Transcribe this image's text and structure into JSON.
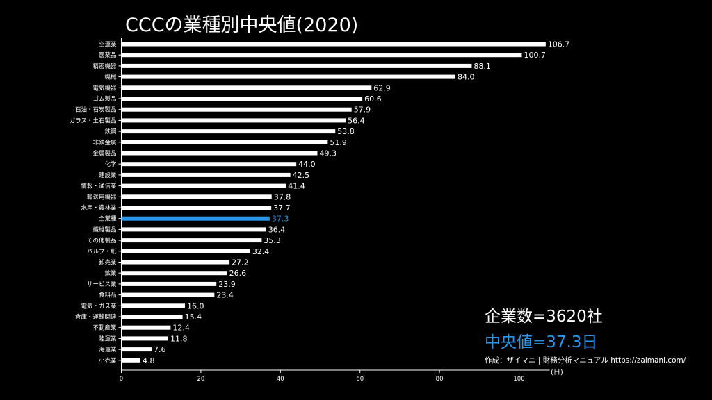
{
  "chart_data": {
    "type": "bar",
    "orientation": "horizontal",
    "title": "CCCの業種別中央値(2020)",
    "xlabel": "(日)",
    "ylabel": "",
    "xlim": [
      0,
      107
    ],
    "x_ticks": [
      0,
      20,
      40,
      60,
      80,
      100
    ],
    "grid": false,
    "highlight_category": "全業種",
    "categories": [
      "空運業",
      "医薬品",
      "精密機器",
      "機械",
      "電気機器",
      "ゴム製品",
      "石油・石炭製品",
      "ガラス・土石製品",
      "鉄鋼",
      "非鉄金属",
      "金属製品",
      "化学",
      "建設業",
      "情報・通信業",
      "輸送用機器",
      "水産・農林業",
      "全業種",
      "繊維製品",
      "その他製品",
      "パルプ・紙",
      "卸売業",
      "鉱業",
      "サービス業",
      "食料品",
      "電気・ガス業",
      "倉庫・運輸関連",
      "不動産業",
      "陸運業",
      "海運業",
      "小売業"
    ],
    "values": [
      106.7,
      100.7,
      88.1,
      84.0,
      62.9,
      60.6,
      57.9,
      56.4,
      53.8,
      51.9,
      49.3,
      44.0,
      42.5,
      41.4,
      37.8,
      37.7,
      37.3,
      36.4,
      35.3,
      32.4,
      27.2,
      26.6,
      23.9,
      23.4,
      16.0,
      15.4,
      12.4,
      11.8,
      7.6,
      4.8
    ],
    "value_labels": [
      "106.7",
      "100.7",
      "88.1",
      "84.0",
      "62.9",
      "60.6",
      "57.9",
      "56.4",
      "53.8",
      "51.9",
      "49.3",
      "44.0",
      "42.5",
      "41.4",
      "37.8",
      "37.7",
      "37.3",
      "36.4",
      "35.3",
      "32.4",
      "27.2",
      "26.6",
      "23.9",
      "23.4",
      "16.0",
      "15.4",
      "12.4",
      "11.8",
      "7.6",
      "4.8"
    ]
  },
  "info": {
    "company_count": "企業数=3620社",
    "median": "中央値=37.3日",
    "credit": "作成：ザイマニ | 財務分析マニュアル https://zaimani.com/"
  },
  "colors": {
    "bar": "#ffffff",
    "highlight": "#2b95e6",
    "background": "#000000",
    "text": "#ffffff"
  }
}
